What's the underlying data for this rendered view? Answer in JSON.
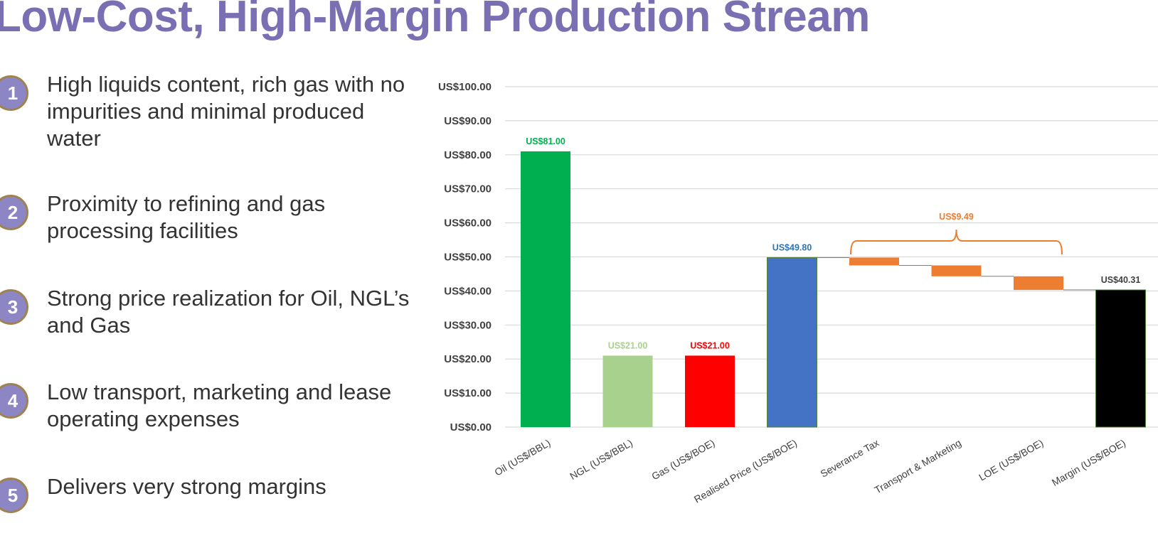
{
  "title": "Low-Cost, High-Margin Production Stream",
  "bullets": [
    {
      "num": "1",
      "text": "High liquids content, rich gas with no impurities and minimal produced water"
    },
    {
      "num": "2",
      "text": "Proximity to refining and gas processing facilities"
    },
    {
      "num": "3",
      "text": "Strong price realization for Oil, NGL’s and Gas"
    },
    {
      "num": "4",
      "text": "Low transport, marketing and lease operating expenses"
    },
    {
      "num": "5",
      "text": "Delivers very strong margins"
    }
  ],
  "colors": {
    "title": "#7b6fb4",
    "bullet_circle": "#8c86c4",
    "bullet_border": "#a08250",
    "oil": "#00b050",
    "ngl": "#a9d18e",
    "gas": "#ff0000",
    "realised": "#4472c4",
    "costs": "#ed7d31",
    "margin": "#000000"
  },
  "chart_data": {
    "type": "bar",
    "subtype": "waterfall",
    "ylim": [
      0,
      100
    ],
    "yticks": [
      "US$0.00",
      "US$10.00",
      "US$20.00",
      "US$30.00",
      "US$40.00",
      "US$50.00",
      "US$60.00",
      "US$70.00",
      "US$80.00",
      "US$90.00",
      "US$100.00"
    ],
    "ytick_values": [
      0,
      10,
      20,
      30,
      40,
      50,
      60,
      70,
      80,
      90,
      100
    ],
    "grid": true,
    "categories": [
      "Oil (US$/BBL)",
      "NGL (US$/BBL)",
      "Gas (US$/BOE)",
      "Realised Price (US$/BOE)",
      "Severance Tax",
      "Transport & Marketing",
      "LOE (US$/BOE)",
      "Margin (US$/BOE)"
    ],
    "bars": [
      {
        "category": "Oil (US$/BBL)",
        "base": 0,
        "top": 81.0,
        "label": "US$81.00",
        "color": "#00b050",
        "label_color": "#00b050"
      },
      {
        "category": "NGL (US$/BBL)",
        "base": 0,
        "top": 21.0,
        "label": "US$21.00",
        "color": "#a9d18e",
        "label_color": "#a9d18e"
      },
      {
        "category": "Gas (US$/BOE)",
        "base": 0,
        "top": 21.0,
        "label": "US$21.00",
        "color": "#ff0000",
        "label_color": "#ff0000"
      },
      {
        "category": "Realised Price (US$/BOE)",
        "base": 0,
        "top": 49.8,
        "label": "US$49.80",
        "color": "#4472c4",
        "label_color": "#2e75b6"
      },
      {
        "category": "Severance Tax",
        "base": 47.5,
        "top": 49.8,
        "label": "",
        "color": "#ed7d31",
        "label_color": "#ed7d31"
      },
      {
        "category": "Transport & Marketing",
        "base": 44.3,
        "top": 47.5,
        "label": "",
        "color": "#ed7d31",
        "label_color": "#ed7d31"
      },
      {
        "category": "LOE (US$/BOE)",
        "base": 40.31,
        "top": 44.3,
        "label": "",
        "color": "#ed7d31",
        "label_color": "#ed7d31"
      },
      {
        "category": "Margin (US$/BOE)",
        "base": 0,
        "top": 40.31,
        "label": "US$40.31",
        "color": "#000000",
        "label_color": "#404040"
      }
    ],
    "annotations": [
      {
        "text": "US$9.49",
        "spans": [
          "Severance Tax",
          "LOE (US$/BOE)"
        ],
        "value": 9.49,
        "color": "#ed7d31"
      }
    ]
  }
}
